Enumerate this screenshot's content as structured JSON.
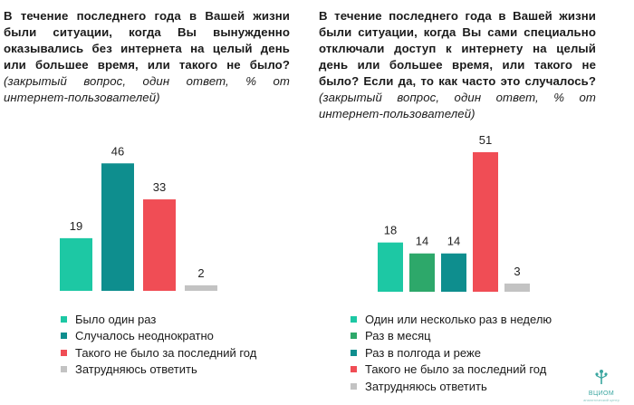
{
  "panels": [
    {
      "question_bold": "В течение последнего года в Вашей жизни были ситуации, когда Вы вынужденно оказывались без интернета на целый день или большее время, или такого не было?",
      "question_italic": "(закрытый вопрос, один ответ, % от интернет-пользователей)"
    },
    {
      "question_bold": "В течение последнего года в Вашей жизни были ситуации, когда Вы сами специально отключали доступ к интернету на целый день или большее время, или такого не было? Если да, то как часто это случалось?",
      "question_italic": "(закрытый вопрос, один ответ, % от интернет-пользователей)"
    }
  ],
  "chart_data": [
    {
      "type": "bar",
      "categories": [
        "Было один раз",
        "Случалось неоднократно",
        "Такого не было за последний год",
        "Затрудняюсь ответить"
      ],
      "values": [
        19,
        46,
        33,
        2
      ],
      "colors": [
        "#1dc8a4",
        "#0e8e8e",
        "#f04d55",
        "#c3c3c3"
      ],
      "ylim": [
        0,
        51
      ],
      "grid": false,
      "legend_position": "bottom"
    },
    {
      "type": "bar",
      "categories": [
        "Один или несколько раз в неделю",
        "Раз в месяц",
        "Раз в полгода и реже",
        "Такого не было за последний год",
        "Затрудняюсь ответить"
      ],
      "values": [
        18,
        14,
        14,
        51,
        3
      ],
      "colors": [
        "#1dc8a4",
        "#2da86a",
        "#0e8e8e",
        "#f04d55",
        "#c3c3c3"
      ],
      "ylim": [
        0,
        51
      ],
      "grid": false,
      "legend_position": "bottom"
    }
  ],
  "logo": {
    "name": "ВЦИОМ",
    "subtitle": "аналитический центр"
  }
}
